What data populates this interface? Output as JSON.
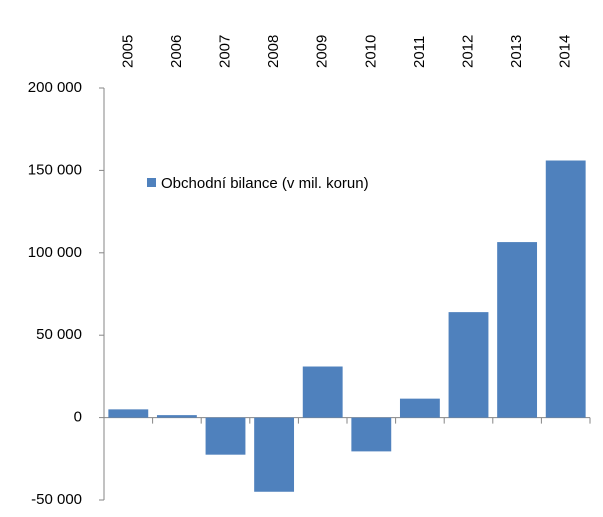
{
  "chart_data": {
    "type": "bar",
    "categories": [
      "2005",
      "2006",
      "2007",
      "2008",
      "2009",
      "2010",
      "2011",
      "2012",
      "2013",
      "2014"
    ],
    "series": [
      {
        "name": "Obchodní bilance (v  mil. korun)",
        "color": "#4f81bd",
        "values": [
          5000,
          1500,
          -22500,
          -45000,
          31000,
          -20500,
          11500,
          64000,
          106500,
          156000
        ]
      }
    ],
    "ylim": [
      -50000,
      200000
    ],
    "yticks": [
      {
        "value": -50000,
        "label": "-50 000"
      },
      0,
      {
        "value": 50000,
        "label": "50 000"
      },
      {
        "value": 100000,
        "label": "100 000"
      },
      {
        "value": 150000,
        "label": "150 000"
      },
      {
        "value": 200000,
        "label": "200 000"
      }
    ]
  }
}
